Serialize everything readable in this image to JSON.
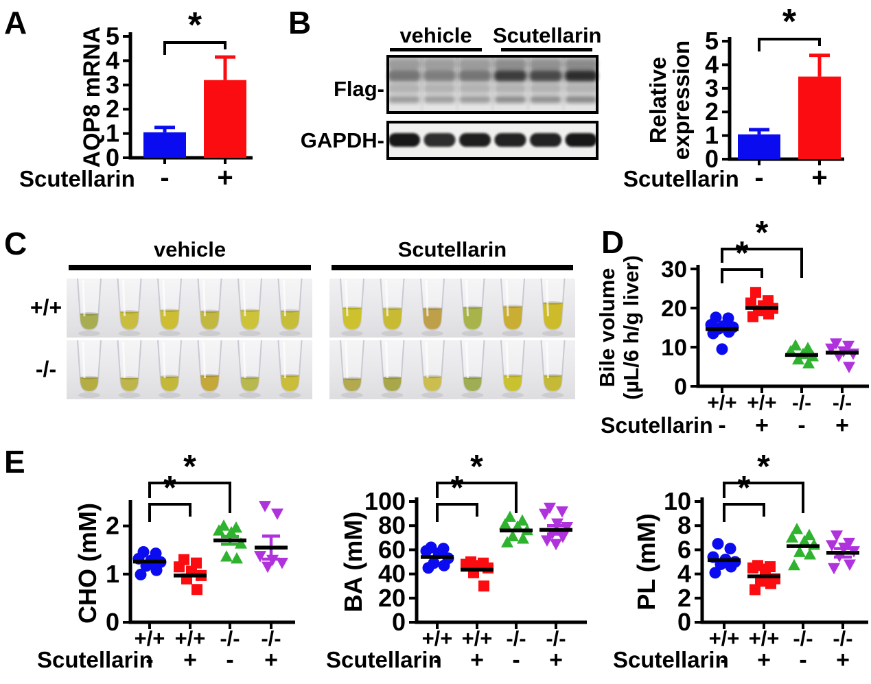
{
  "colors": {
    "blue": "#0b0bf0",
    "red": "#fb0c10",
    "green": "#2fb32f",
    "magenta": "#b032dd",
    "axis": "#000000"
  },
  "panel_a": {
    "label": "A"
  },
  "panel_b": {
    "label": "B",
    "group_headers": [
      "vehicle",
      "Scutellarin"
    ],
    "blot_row_labels": [
      "Flag-",
      "GAPDH-"
    ],
    "flag_lane_intensities": [
      0.5,
      0.45,
      0.5,
      0.82,
      0.75,
      0.9
    ],
    "gapdh_lane_intensities": [
      0.95,
      0.85,
      0.92,
      0.9,
      0.9,
      0.95
    ]
  },
  "panel_c": {
    "label": "C",
    "group_headers": [
      "vehicle",
      "Scutellarin"
    ],
    "row_labels": [
      "+/+",
      "-/-"
    ],
    "tube_sets": {
      "vehicle_wt": [
        {
          "level": 0.3,
          "color": "#a9ad52"
        },
        {
          "level": 0.34,
          "color": "#c9bd3f"
        },
        {
          "level": 0.37,
          "color": "#cdbd32"
        },
        {
          "level": 0.35,
          "color": "#c3b83f"
        },
        {
          "level": 0.37,
          "color": "#cdc339"
        },
        {
          "level": 0.36,
          "color": "#c6bd3a"
        }
      ],
      "scutellarin_wt": [
        {
          "level": 0.42,
          "color": "#cdc22e"
        },
        {
          "level": 0.41,
          "color": "#c8ba33"
        },
        {
          "level": 0.41,
          "color": "#bfa04a"
        },
        {
          "level": 0.43,
          "color": "#a8b44a"
        },
        {
          "level": 0.45,
          "color": "#c9ae33"
        },
        {
          "level": 0.52,
          "color": "#cdbb2a"
        }
      ],
      "vehicle_ko": [
        {
          "level": 0.26,
          "color": "#b5ad42"
        },
        {
          "level": 0.25,
          "color": "#beb64a"
        },
        {
          "level": 0.28,
          "color": "#c3b83a"
        },
        {
          "level": 0.3,
          "color": "#c4a83a"
        },
        {
          "level": 0.26,
          "color": "#b8b84e"
        },
        {
          "level": 0.3,
          "color": "#c9bd3a"
        }
      ],
      "scutellarin_ko": [
        {
          "level": 0.24,
          "color": "#b3a94e"
        },
        {
          "level": 0.26,
          "color": "#a8a84a"
        },
        {
          "level": 0.28,
          "color": "#cbbd4e"
        },
        {
          "level": 0.26,
          "color": "#9fae52"
        },
        {
          "level": 0.3,
          "color": "#c9c22e"
        },
        {
          "level": 0.3,
          "color": "#c4ba38"
        }
      ]
    }
  },
  "panel_d": {
    "label": "D"
  },
  "panel_e": {
    "label": "E"
  },
  "chart_data": [
    {
      "id": "chartA",
      "type": "bar",
      "ylabel_lines": [
        "AQP8 mRNA"
      ],
      "ylim": [
        0,
        5
      ],
      "yticks": [
        0,
        1,
        2,
        3,
        4,
        5
      ],
      "x_axis_title": "Scutellarin",
      "categories": [
        "-",
        "+"
      ],
      "values": [
        1.05,
        3.2
      ],
      "errors": [
        0.2,
        0.95
      ],
      "bar_colors": [
        "blue",
        "red"
      ],
      "sig": [
        {
          "from": 0,
          "to": 1,
          "label": "*"
        }
      ]
    },
    {
      "id": "chartB",
      "type": "bar",
      "ylabel_lines": [
        "Relative",
        "expression"
      ],
      "ylim": [
        0,
        5
      ],
      "yticks": [
        0,
        1,
        2,
        3,
        4,
        5
      ],
      "x_axis_title": "Scutellarin",
      "categories": [
        "-",
        "+"
      ],
      "values": [
        1.05,
        3.5
      ],
      "errors": [
        0.2,
        0.9
      ],
      "bar_colors": [
        "blue",
        "red"
      ],
      "sig": [
        {
          "from": 0,
          "to": 1,
          "label": "*"
        }
      ]
    },
    {
      "id": "chartD",
      "type": "scatter",
      "ylabel_lines": [
        "Bile volume",
        "(µL/6 h/g liver)"
      ],
      "ylim": [
        0,
        30
      ],
      "yticks": [
        0,
        10,
        20,
        30
      ],
      "x_axis_title": "Scutellarin",
      "x_labels": [
        "+/+",
        "+/+",
        "-/-",
        "-/-"
      ],
      "treatment_row": [
        "-",
        "+",
        "-",
        "+"
      ],
      "groups": [
        {
          "marker": "circle",
          "color": "blue",
          "mean": 14.6,
          "values": [
            17.6,
            17.4,
            15.7,
            15.4,
            15.1,
            14.7,
            13.9,
            13.5,
            9.5
          ]
        },
        {
          "marker": "square",
          "color": "red",
          "mean": 20.0,
          "values": [
            24.0,
            21.9,
            21.3,
            20.6,
            19.9,
            19.3,
            18.5,
            17.8
          ]
        },
        {
          "marker": "triangle-up",
          "color": "green",
          "mean": 8.0,
          "values": [
            10.4,
            9.7,
            8.9,
            8.2,
            7.6,
            6.8,
            5.8
          ]
        },
        {
          "marker": "triangle-down",
          "color": "magenta",
          "mean": 8.6,
          "values": [
            11.0,
            10.4,
            9.7,
            9.0,
            8.4,
            7.8,
            5.0
          ]
        }
      ],
      "sig": [
        {
          "from": 0,
          "to": 1,
          "label": "*"
        },
        {
          "from": 0,
          "to": 2,
          "label": "*"
        }
      ]
    },
    {
      "id": "chartE_cho",
      "type": "scatter",
      "ylabel_lines": [
        "CHO (mM)"
      ],
      "ylim": [
        0,
        2.45
      ],
      "yticks": [
        0,
        1,
        2
      ],
      "x_axis_title": "Scutellarin",
      "x_labels": [
        "+/+",
        "+/+",
        "-/-",
        "-/-"
      ],
      "treatment_row": [
        "-",
        "+",
        "-",
        "+"
      ],
      "groups": [
        {
          "marker": "circle",
          "color": "blue",
          "mean": 1.26,
          "values": [
            1.46,
            1.43,
            1.32,
            1.28,
            1.25,
            1.17,
            1.08,
            0.99
          ]
        },
        {
          "marker": "square",
          "color": "red",
          "mean": 0.97,
          "values": [
            1.3,
            1.23,
            1.15,
            1.06,
            0.97,
            0.9,
            0.68
          ]
        },
        {
          "marker": "triangle-up",
          "color": "green",
          "mean": 1.7,
          "err": 0.08,
          "values": [
            2.0,
            1.96,
            1.9,
            1.86,
            1.63,
            1.36,
            1.32
          ]
        },
        {
          "marker": "triangle-down",
          "color": "magenta",
          "mean": 1.55,
          "err": 0.24,
          "values": [
            2.42,
            2.26,
            1.38,
            1.3,
            1.24,
            1.16
          ]
        }
      ],
      "sig": [
        {
          "from": 0,
          "to": 1,
          "label": "*"
        },
        {
          "from": 0,
          "to": 2,
          "label": "*"
        }
      ]
    },
    {
      "id": "chartE_ba",
      "type": "scatter",
      "ylabel_lines": [
        "BA (mM)"
      ],
      "ylim": [
        0,
        100
      ],
      "yticks": [
        0,
        20,
        40,
        60,
        80,
        100
      ],
      "x_axis_title": "Scutellarin",
      "x_labels": [
        "+/+",
        "+/+",
        "-/-",
        "-/-"
      ],
      "treatment_row": [
        "-",
        "+",
        "-",
        "+"
      ],
      "groups": [
        {
          "marker": "circle",
          "color": "blue",
          "mean": 54,
          "values": [
            62,
            61,
            59,
            57,
            53,
            49,
            47,
            45
          ]
        },
        {
          "marker": "square",
          "color": "red",
          "mean": 43.5,
          "values": [
            50,
            49,
            48,
            47,
            45,
            41,
            30
          ]
        },
        {
          "marker": "triangle-up",
          "color": "green",
          "mean": 76,
          "values": [
            87,
            84,
            81,
            79,
            76,
            71,
            69,
            66
          ]
        },
        {
          "marker": "triangle-down",
          "color": "magenta",
          "mean": 76.5,
          "err": 3.5,
          "values": [
            95,
            92,
            90,
            82,
            79,
            74,
            71,
            68,
            65
          ]
        }
      ],
      "sig": [
        {
          "from": 0,
          "to": 1,
          "label": "*"
        },
        {
          "from": 0,
          "to": 2,
          "label": "*"
        }
      ]
    },
    {
      "id": "chartE_pl",
      "type": "scatter",
      "ylabel_lines": [
        "PL (mM)"
      ],
      "ylim": [
        0,
        10
      ],
      "yticks": [
        0,
        2,
        4,
        6,
        8,
        10
      ],
      "x_axis_title": "Scutellarin",
      "x_labels": [
        "+/+",
        "+/+",
        "-/-",
        "-/-"
      ],
      "treatment_row": [
        "-",
        "+",
        "-",
        "+"
      ],
      "groups": [
        {
          "marker": "circle",
          "color": "blue",
          "mean": 5.15,
          "values": [
            6.5,
            6.1,
            5.4,
            5.2,
            5.0,
            4.8,
            4.6,
            4.1
          ]
        },
        {
          "marker": "square",
          "color": "red",
          "mean": 3.8,
          "values": [
            4.7,
            4.6,
            4.5,
            4.4,
            3.6,
            3.4,
            3.2,
            2.7
          ]
        },
        {
          "marker": "triangle-up",
          "color": "green",
          "mean": 6.3,
          "values": [
            7.7,
            7.2,
            7.0,
            6.7,
            6.4,
            5.8,
            5.6,
            4.7
          ]
        },
        {
          "marker": "triangle-down",
          "color": "magenta",
          "mean": 5.75,
          "err": 0.35,
          "values": [
            7.2,
            6.6,
            6.4,
            6.2,
            5.9,
            5.5,
            4.8,
            4.5
          ]
        }
      ],
      "sig": [
        {
          "from": 0,
          "to": 1,
          "label": "*"
        },
        {
          "from": 0,
          "to": 2,
          "label": "*"
        }
      ]
    }
  ]
}
